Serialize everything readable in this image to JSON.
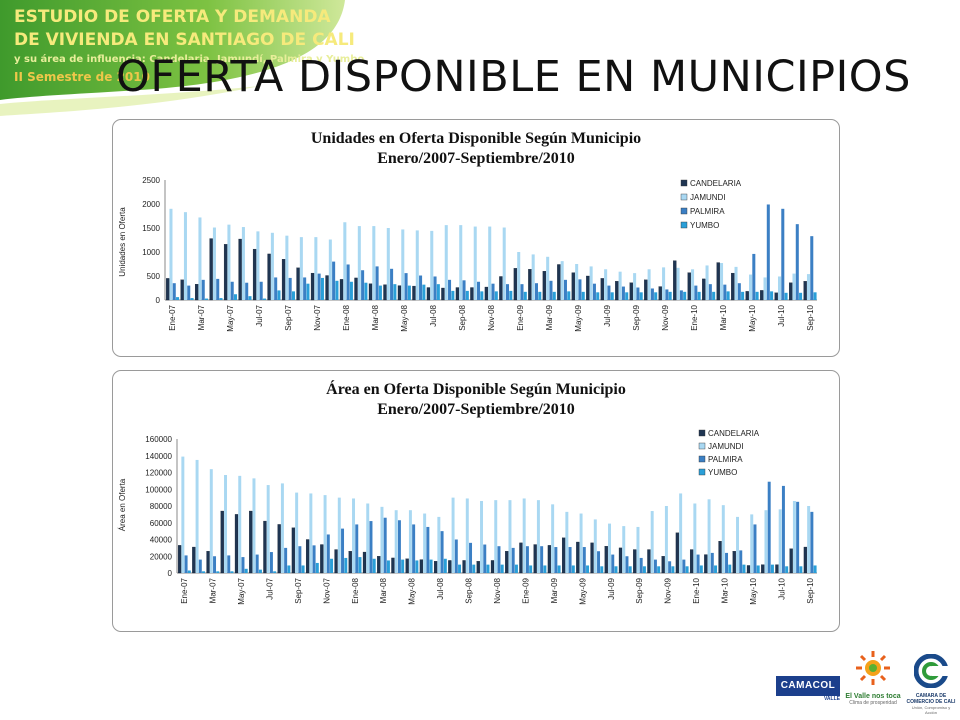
{
  "header": {
    "line1": "ESTUDIO DE OFERTA Y DEMANDA",
    "line2": "DE VIVIENDA EN SANTIAGO DE CALI",
    "line3": "y su área de influencia: Candelaria, Jamundí, Palmira y Yumbo",
    "line4": "II Semestre de 2010"
  },
  "slide_title": "OFERTA DISPONIBLE EN MUNICIPIOS",
  "logos": {
    "camacol": "CAMACOL",
    "camacol_sub": "VALLE",
    "valle": "El Valle nos toca",
    "valle_sub": "Clima de prosperidad",
    "camara": "CAMARA DE COMERCIO DE CALI",
    "camara_sub": "Unión, Compromiso y Acción"
  },
  "colors": {
    "candelaria": "#1f3552",
    "jamundi": "#a9d8f2",
    "palmira": "#3b7fc4",
    "yumbo": "#2a9fd8",
    "green": "#7dc242",
    "dark_green": "#3a8c2a"
  },
  "months": [
    "Ene-07",
    "Feb-07",
    "Mar-07",
    "Abr-07",
    "May-07",
    "Jun-07",
    "Jul-07",
    "Ago-07",
    "Sep-07",
    "Oct-07",
    "Nov-07",
    "Dic-07",
    "Ene-08",
    "Feb-08",
    "Mar-08",
    "Abr-08",
    "May-08",
    "Jun-08",
    "Jul-08",
    "Ago-08",
    "Sep-08",
    "Oct-08",
    "Nov-08",
    "Dic-08",
    "Ene-09",
    "Feb-09",
    "Mar-09",
    "Abr-09",
    "May-09",
    "Jun-09",
    "Jul-09",
    "Ago-09",
    "Sep-09",
    "Oct-09",
    "Nov-09",
    "Dic-09",
    "Ene-10",
    "Feb-10",
    "Mar-10",
    "Abr-10",
    "May-10",
    "Jun-10",
    "Jul-10",
    "Ago-10",
    "Sep-10"
  ],
  "chart_data": [
    {
      "type": "bar",
      "title": "Unidades en Oferta Disponible Según Municipio",
      "subtitle": "Enero/2007-Septiembre/2010",
      "ylabel": "Unidades en Oferta",
      "xlabel": "",
      "ylim": [
        0,
        2500
      ],
      "yticks": [
        "0",
        "500",
        "1000",
        "1500",
        "2000",
        "2500"
      ],
      "legend_position": "top-right",
      "tick_step": 2,
      "series": [
        {
          "name": "CANDELARIA",
          "values": [
            450,
            420,
            330,
            1280,
            1160,
            1270,
            1060,
            960,
            850,
            670,
            560,
            510,
            430,
            460,
            340,
            320,
            300,
            290,
            260,
            250,
            260,
            260,
            270,
            490,
            660,
            640,
            600,
            740,
            570,
            500,
            450,
            390,
            360,
            420,
            280,
            820,
            570,
            440,
            780,
            560,
            180,
            200,
            150,
            360,
            390
          ]
        },
        {
          "name": "JAMUNDI",
          "values": [
            1900,
            1830,
            1720,
            1510,
            1570,
            1520,
            1430,
            1400,
            1340,
            1310,
            1310,
            1260,
            1620,
            1540,
            1540,
            1500,
            1470,
            1450,
            1440,
            1560,
            1560,
            1530,
            1530,
            1510,
            1000,
            950,
            900,
            810,
            750,
            700,
            640,
            590,
            560,
            640,
            680,
            670,
            640,
            720,
            770,
            690,
            530,
            470,
            490,
            550,
            540
          ]
        },
        {
          "name": "PALMIRA",
          "values": [
            350,
            300,
            420,
            440,
            380,
            360,
            380,
            470,
            460,
            470,
            550,
            800,
            740,
            620,
            700,
            650,
            560,
            510,
            490,
            420,
            410,
            380,
            340,
            330,
            330,
            350,
            400,
            420,
            430,
            340,
            300,
            280,
            260,
            240,
            220,
            200,
            300,
            330,
            320,
            350,
            960,
            1990,
            1900,
            1580,
            1330
          ]
        },
        {
          "name": "YUMBO",
          "values": [
            60,
            40,
            30,
            40,
            120,
            80,
            30,
            200,
            180,
            340,
            460,
            400,
            380,
            360,
            300,
            330,
            300,
            320,
            330,
            190,
            190,
            180,
            180,
            190,
            170,
            170,
            170,
            180,
            170,
            160,
            160,
            160,
            160,
            160,
            170,
            170,
            170,
            170,
            180,
            170,
            170,
            180,
            150,
            150,
            160
          ]
        }
      ]
    },
    {
      "type": "bar",
      "title": "Área en Oferta Disponible Según Municipio",
      "subtitle": "Enero/2007-Septiembre/2010",
      "ylabel": "Área en Oferta",
      "xlabel": "",
      "ylim": [
        0,
        160000
      ],
      "yticks": [
        "0",
        "20000",
        "40000",
        "60000",
        "80000",
        "100000",
        "120000",
        "140000",
        "160000"
      ],
      "legend_position": "top-right",
      "tick_step": 2,
      "series": [
        {
          "name": "CANDELARIA",
          "values": [
            33000,
            31000,
            26000,
            74000,
            70000,
            74000,
            62000,
            58000,
            54000,
            40000,
            34000,
            28000,
            26000,
            25000,
            20000,
            18000,
            17000,
            16000,
            14000,
            15000,
            15000,
            14000,
            15000,
            26000,
            36000,
            34000,
            33000,
            42000,
            37000,
            36000,
            32000,
            30000,
            28000,
            28000,
            20000,
            48000,
            28000,
            22000,
            38000,
            26000,
            9000,
            10000,
            10000,
            29000,
            31000
          ]
        },
        {
          "name": "JAMUNDI",
          "values": [
            139000,
            135000,
            124000,
            117000,
            116000,
            113000,
            105000,
            107000,
            96000,
            95000,
            93000,
            90000,
            89000,
            83000,
            79000,
            75000,
            75000,
            71000,
            67000,
            90000,
            89000,
            86000,
            87000,
            87000,
            89000,
            87000,
            82000,
            73000,
            71000,
            64000,
            59000,
            56000,
            55000,
            74000,
            80000,
            95000,
            83000,
            88000,
            81000,
            67000,
            70000,
            75000,
            76000,
            86000,
            80000
          ]
        },
        {
          "name": "PALMIRA",
          "values": [
            21000,
            16000,
            20000,
            21000,
            19000,
            22000,
            25000,
            30000,
            32000,
            33000,
            46000,
            53000,
            58000,
            62000,
            66000,
            63000,
            58000,
            55000,
            50000,
            40000,
            36000,
            34000,
            32000,
            30000,
            32000,
            32000,
            31000,
            31000,
            31000,
            26000,
            22000,
            20000,
            18000,
            16000,
            14000,
            16000,
            22000,
            24000,
            24000,
            27000,
            58000,
            109000,
            104000,
            85000,
            73000
          ]
        },
        {
          "name": "YUMBO",
          "values": [
            3000,
            2000,
            2000,
            2000,
            5000,
            4000,
            2000,
            9000,
            9000,
            12000,
            17000,
            18000,
            19000,
            17000,
            15000,
            16000,
            15000,
            16000,
            17000,
            10000,
            10000,
            10000,
            10000,
            10000,
            9000,
            9000,
            9000,
            9000,
            9000,
            8000,
            8000,
            8000,
            8000,
            8000,
            8000,
            8000,
            9000,
            9000,
            10000,
            10000,
            9000,
            10000,
            8000,
            8000,
            9000
          ]
        }
      ]
    }
  ]
}
